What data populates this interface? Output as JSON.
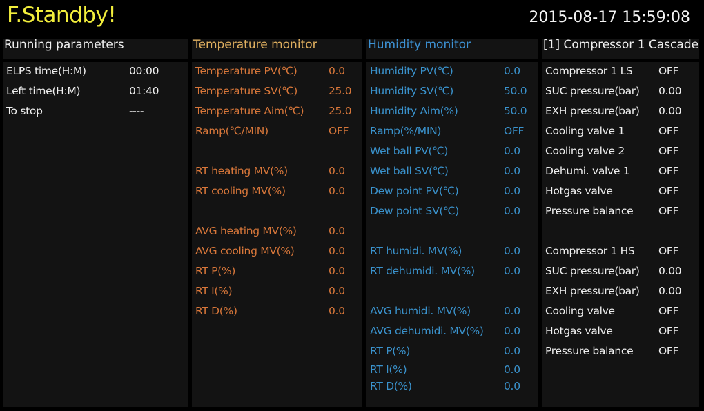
{
  "status_title": "F.Standby!",
  "datetime": "2015-08-17 15:59:08",
  "colors": {
    "title": "#f2ee3c",
    "temp_header": "#e0b060",
    "temp_text": "#d8773a",
    "hum_header": "#3d92d4",
    "hum_text": "#3a92cc",
    "white": "#f0f0f0"
  },
  "panels": [
    {
      "header": "Running parameters",
      "rows": [
        {
          "label": "ELPS time(H:M)",
          "value": "00:00"
        },
        {
          "label": "Left time(H:M)",
          "value": "01:40"
        },
        {
          "label": "To stop",
          "value": "----"
        }
      ]
    },
    {
      "header": "Temperature monitor",
      "rows": [
        {
          "label": "Temperature PV(℃)",
          "value": "0.0"
        },
        {
          "label": "Temperature SV(℃)",
          "value": "25.0"
        },
        {
          "label": "Temperature Aim(℃)",
          "value": "25.0"
        },
        {
          "label": "Ramp(℃/MIN)",
          "value": "OFF"
        },
        null,
        {
          "label": "RT heating MV(%)",
          "value": "0.0"
        },
        {
          "label": "RT cooling MV(%)",
          "value": "0.0"
        },
        null,
        {
          "label": "AVG heating MV(%)",
          "value": "0.0"
        },
        {
          "label": "AVG cooling MV(%)",
          "value": "0.0"
        },
        {
          "label": "RT P(%)",
          "value": "0.0"
        },
        {
          "label": "RT I(%)",
          "value": "0.0"
        },
        {
          "label": "RT D(%)",
          "value": "0.0"
        }
      ]
    },
    {
      "header": "Humidity monitor",
      "rows": [
        {
          "label": "Humidity PV(℃)",
          "value": "0.0"
        },
        {
          "label": "Humidity SV(℃)",
          "value": "50.0"
        },
        {
          "label": "Humidity Aim(%)",
          "value": "50.0"
        },
        {
          "label": "Ramp(%/MIN)",
          "value": "OFF"
        },
        {
          "label": "Wet ball PV(℃)",
          "value": "0.0"
        },
        {
          "label": "Wet ball SV(℃)",
          "value": "0.0"
        },
        {
          "label": "Dew point PV(℃)",
          "value": "0.0"
        },
        {
          "label": "Dew point SV(℃)",
          "value": "0.0"
        },
        null,
        {
          "label": "RT humidi. MV(%)",
          "value": "0.0"
        },
        {
          "label": "RT dehumidi. MV(%)",
          "value": "0.0"
        },
        null,
        {
          "label": "AVG humidi. MV(%)",
          "value": "0.0"
        },
        {
          "label": "AVG dehumidi. MV(%)",
          "value": "0.0"
        },
        {
          "label": "RT P(%)",
          "value": "0.0"
        },
        {
          "label": "RT I(%)",
          "value": "0.0"
        },
        {
          "label": "RT D(%)",
          "value": "0.0"
        }
      ]
    },
    {
      "header": "[1] Compressor 1 Cascade",
      "rows": [
        {
          "label": "Compressor 1 LS",
          "value": "OFF"
        },
        {
          "label": "SUC pressure(bar)",
          "value": "0.00"
        },
        {
          "label": "EXH pressure(bar)",
          "value": "0.00"
        },
        {
          "label": "Cooling valve 1",
          "value": "OFF"
        },
        {
          "label": "Cooling valve 2",
          "value": "OFF"
        },
        {
          "label": "Dehumi. valve 1",
          "value": "OFF"
        },
        {
          "label": "Hotgas valve",
          "value": "OFF"
        },
        {
          "label": "Pressure balance",
          "value": "OFF"
        },
        null,
        {
          "label": "Compressor 1 HS",
          "value": "OFF"
        },
        {
          "label": "SUC pressure(bar)",
          "value": "0.00"
        },
        {
          "label": "EXH pressure(bar)",
          "value": "0.00"
        },
        {
          "label": "Cooling valve",
          "value": "OFF"
        },
        {
          "label": "Hotgas valve",
          "value": "OFF"
        },
        {
          "label": "Pressure balance",
          "value": "OFF"
        }
      ]
    }
  ]
}
